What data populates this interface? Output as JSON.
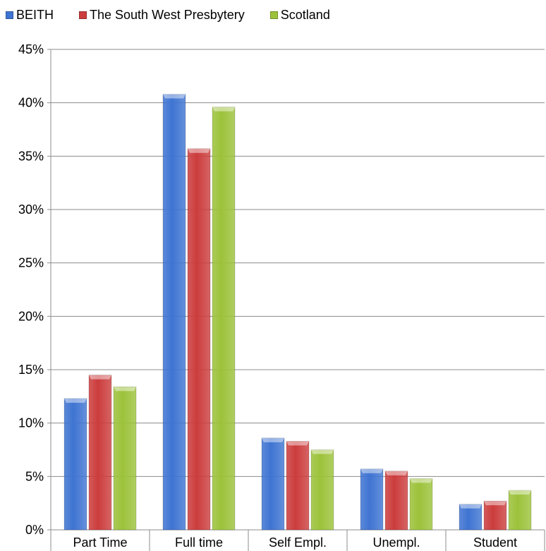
{
  "chart_data": {
    "type": "bar",
    "categories": [
      "Part Time",
      "Full time",
      "Self Empl.",
      "Unempl.",
      "Student"
    ],
    "series": [
      {
        "name": "BEITH",
        "color": "#3f74d2",
        "values": [
          12.3,
          40.8,
          8.6,
          5.7,
          2.4
        ]
      },
      {
        "name": "The South West Presbytery",
        "color": "#cc3d3d",
        "values": [
          14.5,
          35.7,
          8.3,
          5.5,
          2.7
        ]
      },
      {
        "name": "Scotland",
        "color": "#9cc23a",
        "values": [
          13.4,
          39.6,
          7.5,
          4.8,
          3.7
        ]
      }
    ],
    "yticks": [
      "0%",
      "5%",
      "10%",
      "15%",
      "20%",
      "25%",
      "30%",
      "35%",
      "40%",
      "45%"
    ],
    "ylim": [
      0,
      45
    ],
    "legend_position": "top-left",
    "grid": true
  }
}
